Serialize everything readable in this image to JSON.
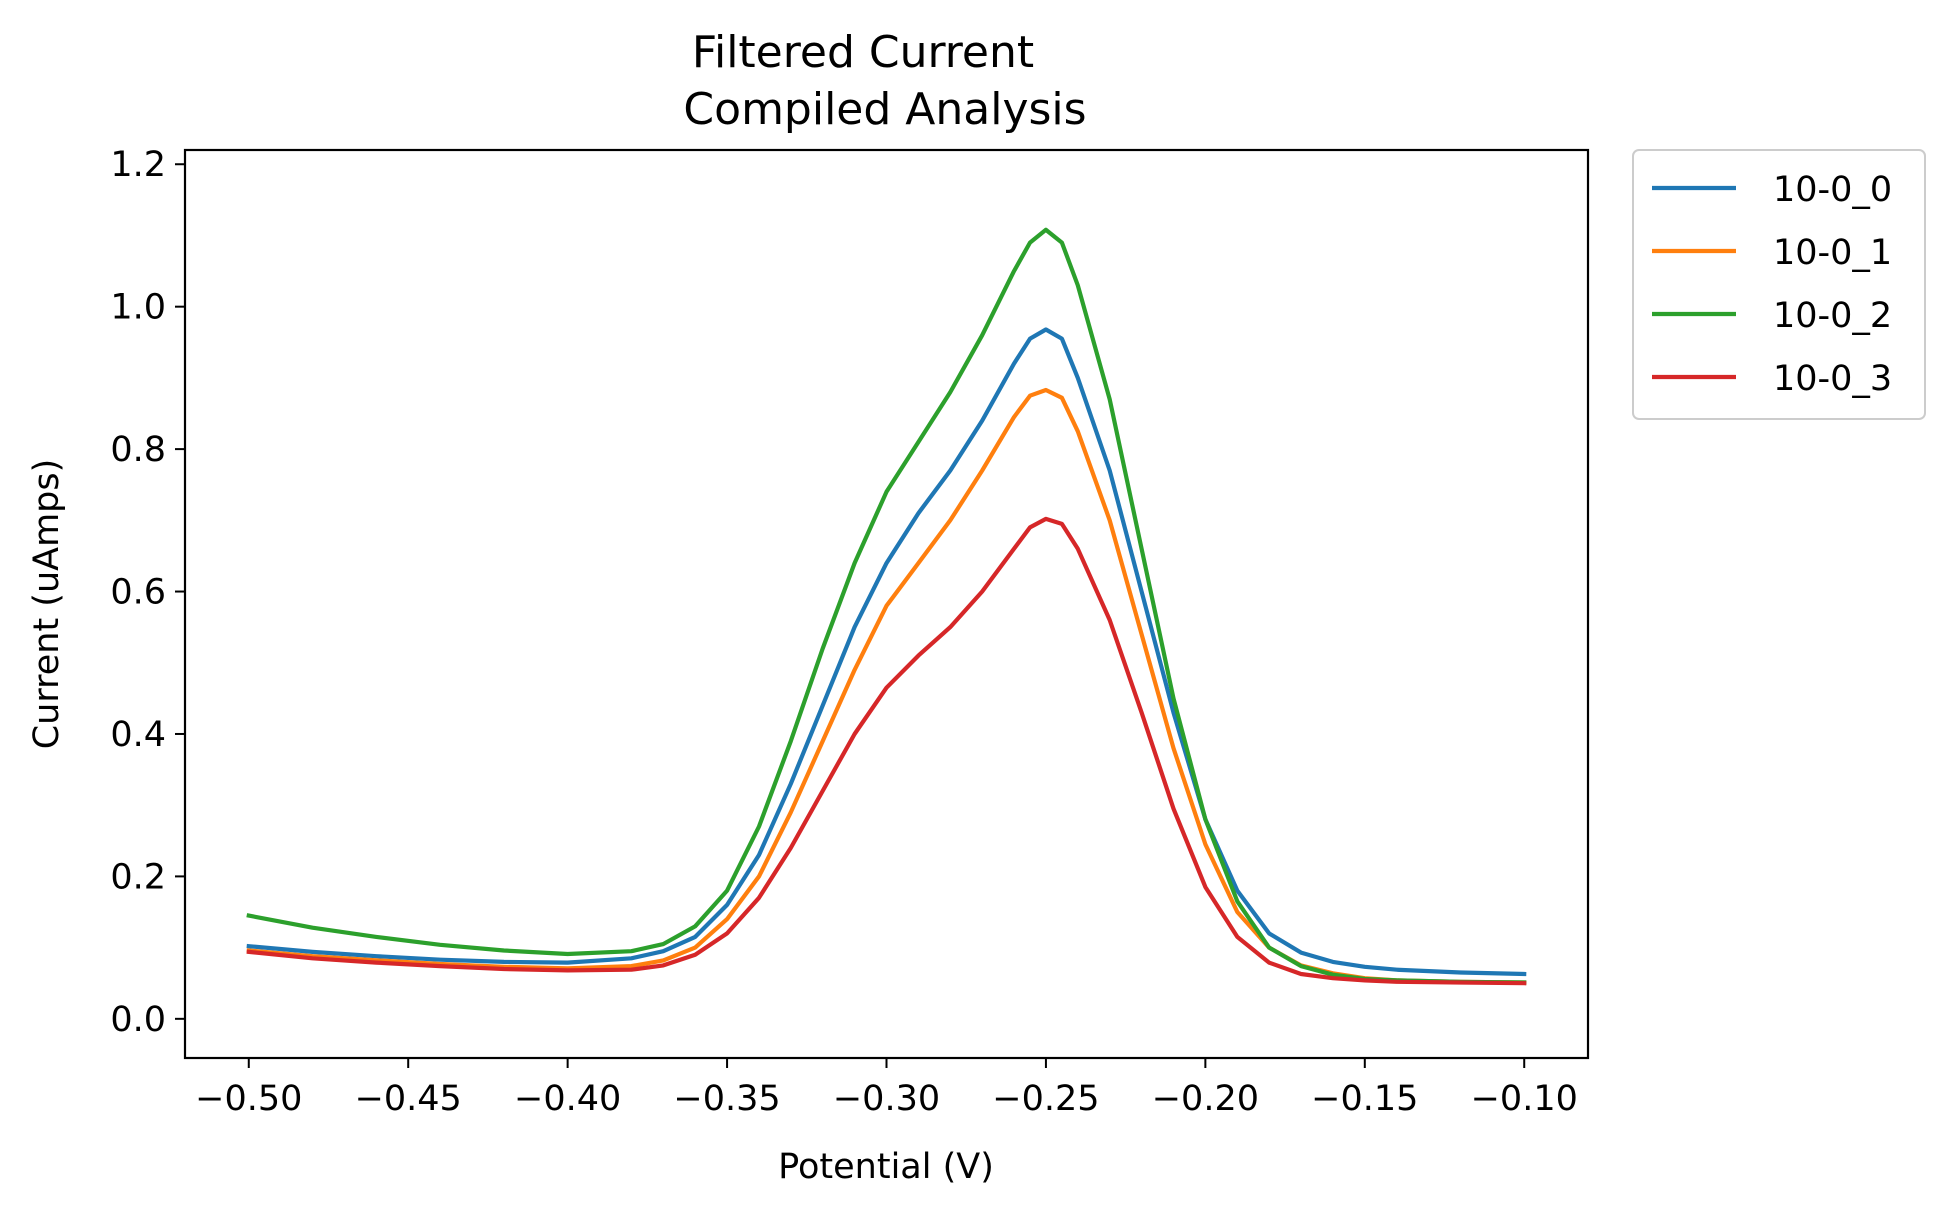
{
  "chart_data": {
    "type": "line",
    "title_line1": "Filtered Current",
    "title_line2": "Compiled Analysis",
    "xlabel": "Potential (V)",
    "ylabel": "Current (uAmps)",
    "xlim": [
      -0.52,
      -0.08
    ],
    "ylim": [
      -0.055,
      1.22
    ],
    "xticks": [
      -0.5,
      -0.45,
      -0.4,
      -0.35,
      -0.3,
      -0.25,
      -0.2,
      -0.15,
      -0.1
    ],
    "xtick_labels": [
      "−0.50",
      "−0.45",
      "−0.40",
      "−0.35",
      "−0.30",
      "−0.25",
      "−0.20",
      "−0.15",
      "−0.10"
    ],
    "yticks": [
      0.0,
      0.2,
      0.4,
      0.6,
      0.8,
      1.0,
      1.2
    ],
    "ytick_labels": [
      "0.0",
      "0.2",
      "0.4",
      "0.6",
      "0.8",
      "1.0",
      "1.2"
    ],
    "legend_position": "outside-upper-right",
    "grid": false,
    "x": [
      -0.5,
      -0.48,
      -0.46,
      -0.44,
      -0.42,
      -0.4,
      -0.38,
      -0.37,
      -0.36,
      -0.35,
      -0.34,
      -0.33,
      -0.32,
      -0.31,
      -0.3,
      -0.29,
      -0.28,
      -0.27,
      -0.26,
      -0.255,
      -0.25,
      -0.245,
      -0.24,
      -0.23,
      -0.22,
      -0.21,
      -0.2,
      -0.19,
      -0.18,
      -0.17,
      -0.16,
      -0.15,
      -0.14,
      -0.12,
      -0.1
    ],
    "series": [
      {
        "name": "10-0_0",
        "color": "#1f77b4",
        "values": [
          0.102,
          0.094,
          0.088,
          0.083,
          0.08,
          0.079,
          0.085,
          0.095,
          0.115,
          0.16,
          0.23,
          0.33,
          0.44,
          0.55,
          0.64,
          0.71,
          0.77,
          0.84,
          0.92,
          0.955,
          0.968,
          0.955,
          0.9,
          0.77,
          0.6,
          0.43,
          0.28,
          0.18,
          0.12,
          0.093,
          0.08,
          0.073,
          0.069,
          0.065,
          0.063
        ]
      },
      {
        "name": "10-0_1",
        "color": "#ff7f0e",
        "values": [
          0.096,
          0.088,
          0.082,
          0.077,
          0.073,
          0.071,
          0.074,
          0.082,
          0.1,
          0.14,
          0.2,
          0.29,
          0.39,
          0.49,
          0.58,
          0.64,
          0.7,
          0.77,
          0.845,
          0.875,
          0.883,
          0.872,
          0.825,
          0.7,
          0.54,
          0.38,
          0.245,
          0.15,
          0.1,
          0.075,
          0.064,
          0.057,
          0.054,
          0.052,
          0.051
        ]
      },
      {
        "name": "10-0_2",
        "color": "#2ca02c",
        "values": [
          0.145,
          0.128,
          0.115,
          0.104,
          0.096,
          0.091,
          0.095,
          0.105,
          0.13,
          0.18,
          0.27,
          0.39,
          0.52,
          0.64,
          0.74,
          0.81,
          0.88,
          0.96,
          1.05,
          1.09,
          1.108,
          1.09,
          1.03,
          0.87,
          0.66,
          0.45,
          0.28,
          0.165,
          0.1,
          0.074,
          0.062,
          0.056,
          0.054,
          0.052,
          0.051
        ]
      },
      {
        "name": "10-0_3",
        "color": "#d62728",
        "values": [
          0.094,
          0.085,
          0.079,
          0.074,
          0.07,
          0.068,
          0.069,
          0.075,
          0.09,
          0.12,
          0.17,
          0.24,
          0.32,
          0.4,
          0.465,
          0.51,
          0.55,
          0.6,
          0.66,
          0.69,
          0.702,
          0.695,
          0.66,
          0.56,
          0.43,
          0.295,
          0.185,
          0.115,
          0.079,
          0.063,
          0.057,
          0.054,
          0.052,
          0.051,
          0.05
        ]
      }
    ]
  }
}
